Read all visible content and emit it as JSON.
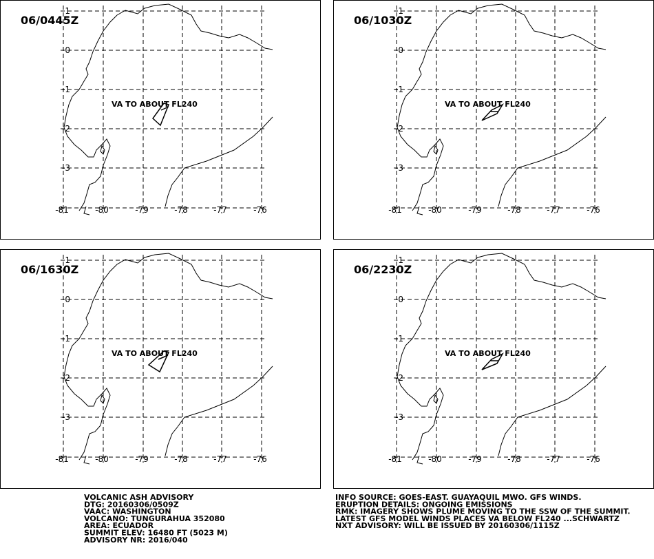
{
  "panels": [
    {
      "time": "06/0445Z",
      "annotation": "VA TO ABOUT  FL240"
    },
    {
      "time": "06/1030Z",
      "annotation": "VA TO ABOUT  FL240"
    },
    {
      "time": "06/1630Z",
      "annotation": "VA TO ABOUT  FL240"
    },
    {
      "time": "06/2230Z",
      "annotation": "VA TO ABOUT  FL240"
    }
  ],
  "grid": {
    "lat_labels": [
      "1",
      "0",
      "-1",
      "-2",
      "-3"
    ],
    "lon_labels": [
      "-81",
      "-80",
      "-79",
      "-78",
      "-77",
      "-76"
    ]
  },
  "advisory": {
    "left": [
      "VOLCANIC ASH ADVISORY",
      "DTG: 20160306/0509Z",
      "VAAC: WASHINGTON",
      "VOLCANO: TUNGURAHUA 352080",
      "AREA: ECUADOR",
      "SUMMIT ELEV: 16480 FT (5023 M)",
      "ADVISORY NR: 2016/040"
    ],
    "right": [
      "INFO SOURCE: GOES-EAST. GUAYAQUIL MWO. GFS WINDS.",
      "ERUPTION DETAILS: ONGOING EMISSIONS",
      "RMK: IMAGERY SHOWS PLUME MOVING TO THE SSW OF THE SUMMIT.",
      "LATEST GFS MODEL WINDS PLACES VA BELOW FL240 ...SCHWARTZ",
      "NXT ADVISORY: WILL BE ISSUED BY 20160306/1115Z"
    ]
  }
}
